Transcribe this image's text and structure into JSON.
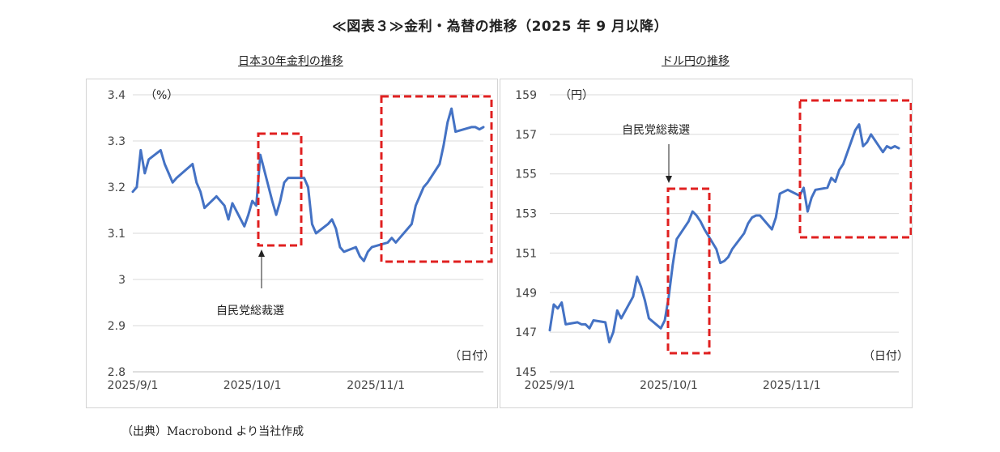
{
  "page": {
    "title": "≪図表３≫金利・為替の推移（2025 年 9 月以降）",
    "source": "（出典）Macrobond より当社作成"
  },
  "chart_data": [
    {
      "type": "line",
      "title": "日本30年金利の推移",
      "unit_label": "（%）",
      "xlabel": "（日付）",
      "ylim": [
        2.8,
        3.4
      ],
      "yticks": [
        "2.8",
        "2.9",
        "3",
        "3.1",
        "3.2",
        "3.3",
        "3.4"
      ],
      "xticks": [
        "2025/9/1",
        "2025/10/1",
        "2025/11/1"
      ],
      "annotation": "自民党総裁選",
      "series": [
        {
          "color": "#4472C4",
          "x": [
            "2025-09-01",
            "2025-09-02",
            "2025-09-03",
            "2025-09-04",
            "2025-09-05",
            "2025-09-08",
            "2025-09-09",
            "2025-09-10",
            "2025-09-11",
            "2025-09-12",
            "2025-09-16",
            "2025-09-17",
            "2025-09-18",
            "2025-09-19",
            "2025-09-22",
            "2025-09-24",
            "2025-09-25",
            "2025-09-26",
            "2025-09-29",
            "2025-09-30",
            "2025-10-01",
            "2025-10-02",
            "2025-10-03",
            "2025-10-06",
            "2025-10-07",
            "2025-10-08",
            "2025-10-09",
            "2025-10-10",
            "2025-10-14",
            "2025-10-15",
            "2025-10-16",
            "2025-10-17",
            "2025-10-20",
            "2025-10-21",
            "2025-10-22",
            "2025-10-23",
            "2025-10-24",
            "2025-10-27",
            "2025-10-28",
            "2025-10-29",
            "2025-10-30",
            "2025-10-31",
            "2025-11-04",
            "2025-11-05",
            "2025-11-06",
            "2025-11-07",
            "2025-11-10",
            "2025-11-11",
            "2025-11-12",
            "2025-11-13",
            "2025-11-14",
            "2025-11-17",
            "2025-11-18",
            "2025-11-19",
            "2025-11-20",
            "2025-11-21",
            "2025-11-25",
            "2025-11-26",
            "2025-11-27",
            "2025-11-28"
          ],
          "y": [
            3.19,
            3.2,
            3.28,
            3.23,
            3.26,
            3.28,
            3.25,
            3.23,
            3.21,
            3.22,
            3.25,
            3.21,
            3.19,
            3.155,
            3.18,
            3.16,
            3.13,
            3.165,
            3.115,
            3.14,
            3.17,
            3.16,
            3.27,
            3.17,
            3.14,
            3.17,
            3.21,
            3.22,
            3.22,
            3.2,
            3.12,
            3.1,
            3.12,
            3.13,
            3.11,
            3.07,
            3.06,
            3.07,
            3.05,
            3.04,
            3.06,
            3.07,
            3.08,
            3.09,
            3.08,
            3.09,
            3.12,
            3.16,
            3.18,
            3.2,
            3.21,
            3.25,
            3.29,
            3.34,
            3.37,
            3.32,
            3.33,
            3.33,
            3.325,
            3.33
          ]
        }
      ]
    },
    {
      "type": "line",
      "title": "ドル円の推移",
      "unit_label": "（円）",
      "xlabel": "（日付）",
      "ylim": [
        145,
        159
      ],
      "yticks": [
        "145",
        "147",
        "149",
        "151",
        "153",
        "155",
        "157",
        "159"
      ],
      "xticks": [
        "2025/9/1",
        "2025/10/1",
        "2025/11/1"
      ],
      "annotation": "自民党総裁選",
      "series": [
        {
          "color": "#4472C4",
          "x": [
            "2025-09-01",
            "2025-09-02",
            "2025-09-03",
            "2025-09-04",
            "2025-09-05",
            "2025-09-08",
            "2025-09-09",
            "2025-09-10",
            "2025-09-11",
            "2025-09-12",
            "2025-09-15",
            "2025-09-16",
            "2025-09-17",
            "2025-09-18",
            "2025-09-19",
            "2025-09-22",
            "2025-09-23",
            "2025-09-24",
            "2025-09-25",
            "2025-09-26",
            "2025-09-29",
            "2025-09-30",
            "2025-10-01",
            "2025-10-02",
            "2025-10-03",
            "2025-10-06",
            "2025-10-07",
            "2025-10-08",
            "2025-10-09",
            "2025-10-10",
            "2025-10-13",
            "2025-10-14",
            "2025-10-15",
            "2025-10-16",
            "2025-10-17",
            "2025-10-20",
            "2025-10-21",
            "2025-10-22",
            "2025-10-23",
            "2025-10-24",
            "2025-10-27",
            "2025-10-28",
            "2025-10-29",
            "2025-10-30",
            "2025-10-31",
            "2025-11-03",
            "2025-11-04",
            "2025-11-05",
            "2025-11-06",
            "2025-11-07",
            "2025-11-10",
            "2025-11-11",
            "2025-11-12",
            "2025-11-13",
            "2025-11-14",
            "2025-11-17",
            "2025-11-18",
            "2025-11-19",
            "2025-11-20",
            "2025-11-21",
            "2025-11-24",
            "2025-11-25",
            "2025-11-26",
            "2025-11-27",
            "2025-11-28"
          ],
          "y": [
            147.1,
            148.4,
            148.2,
            148.5,
            147.4,
            147.5,
            147.4,
            147.4,
            147.2,
            147.6,
            147.5,
            146.5,
            147.0,
            148.1,
            147.7,
            148.8,
            149.8,
            149.3,
            148.6,
            147.7,
            147.2,
            147.6,
            148.8,
            150.4,
            151.7,
            152.6,
            153.1,
            152.9,
            152.6,
            152.2,
            151.2,
            150.5,
            150.6,
            150.8,
            151.2,
            152.0,
            152.5,
            152.8,
            152.9,
            152.9,
            152.2,
            152.8,
            154.0,
            154.1,
            154.2,
            153.9,
            154.3,
            153.1,
            153.8,
            154.2,
            154.3,
            154.8,
            154.6,
            155.2,
            155.5,
            157.2,
            157.5,
            156.4,
            156.6,
            157.0,
            156.1,
            156.4,
            156.3,
            156.4,
            156.3
          ]
        }
      ]
    }
  ]
}
